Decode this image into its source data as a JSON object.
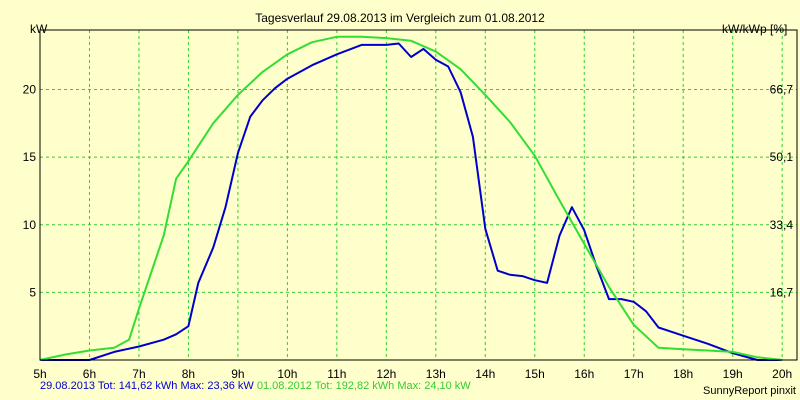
{
  "chart_data": {
    "type": "line",
    "title": "Tagesverlauf 29.08.2013 im Vergleich zum 01.08.2012",
    "ylabel_left": "kW",
    "ylabel_right": "kW/kWp [%]",
    "x_ticks": [
      "5h",
      "6h",
      "7h",
      "8h",
      "9h",
      "10h",
      "11h",
      "12h",
      "13h",
      "14h",
      "15h",
      "16h",
      "17h",
      "18h",
      "19h",
      "20h"
    ],
    "y_ticks_left": [
      "5",
      "10",
      "15",
      "20"
    ],
    "y_ticks_right": [
      "16,7",
      "33,4",
      "50,1",
      "66,7"
    ],
    "xlim": [
      5,
      20.3
    ],
    "ylim": [
      0,
      24.4
    ],
    "grid": true,
    "series": [
      {
        "name": "29.08.2013",
        "color": "#0000cc",
        "x": [
          5,
          6,
          6.5,
          7,
          7.5,
          7.75,
          8,
          8.2,
          8.5,
          8.75,
          9,
          9.25,
          9.5,
          9.75,
          10,
          10.5,
          11,
          11.5,
          12,
          12.25,
          12.5,
          12.75,
          13,
          13.25,
          13.5,
          13.75,
          14,
          14.25,
          14.5,
          14.75,
          15,
          15.25,
          15.5,
          15.75,
          16,
          16.25,
          16.5,
          16.75,
          17,
          17.25,
          17.5,
          17.75,
          18,
          18.5,
          19,
          19.5,
          20
        ],
        "y": [
          0,
          0,
          0.6,
          1.0,
          1.5,
          1.9,
          2.5,
          5.7,
          8.3,
          11.3,
          15.3,
          18.0,
          19.2,
          20.1,
          20.8,
          21.8,
          22.6,
          23.3,
          23.3,
          23.4,
          22.4,
          23.0,
          22.2,
          21.7,
          19.8,
          16.5,
          9.7,
          6.6,
          6.3,
          6.2,
          5.9,
          5.7,
          9.2,
          11.3,
          9.6,
          6.9,
          4.5,
          4.5,
          4.3,
          3.6,
          2.4,
          2.1,
          1.8,
          1.2,
          0.5,
          0,
          0
        ]
      },
      {
        "name": "01.08.2012",
        "color": "#33dd33",
        "x": [
          5,
          5.5,
          6,
          6.5,
          6.8,
          7,
          7.5,
          7.75,
          8,
          8.5,
          9,
          9.5,
          10,
          10.5,
          11,
          11.5,
          12,
          12.5,
          13,
          13.5,
          14,
          14.5,
          15,
          15.5,
          16,
          16.5,
          17,
          17.5,
          18,
          18.5,
          19,
          19.5,
          20
        ],
        "y": [
          0,
          0.4,
          0.7,
          0.9,
          1.5,
          3.8,
          9.2,
          13.4,
          14.7,
          17.5,
          19.6,
          21.3,
          22.6,
          23.5,
          23.9,
          23.9,
          23.8,
          23.6,
          22.8,
          21.5,
          19.6,
          17.6,
          15.1,
          11.8,
          8.6,
          5.4,
          2.6,
          0.9,
          0.8,
          0.7,
          0.6,
          0.2,
          0
        ]
      }
    ]
  },
  "footer": {
    "series1": "29.08.2013 Tot: 141,62 kWh Max: 23,36 kW",
    "series2": "01.08.2012 Tot: 192,82 kWh Max: 24,10 kW",
    "credit": "SunnyReport pinxit"
  },
  "colors": {
    "background": "#ffffcc",
    "grid": "#33cc33",
    "series1": "#0000cc",
    "series2": "#33dd33"
  }
}
